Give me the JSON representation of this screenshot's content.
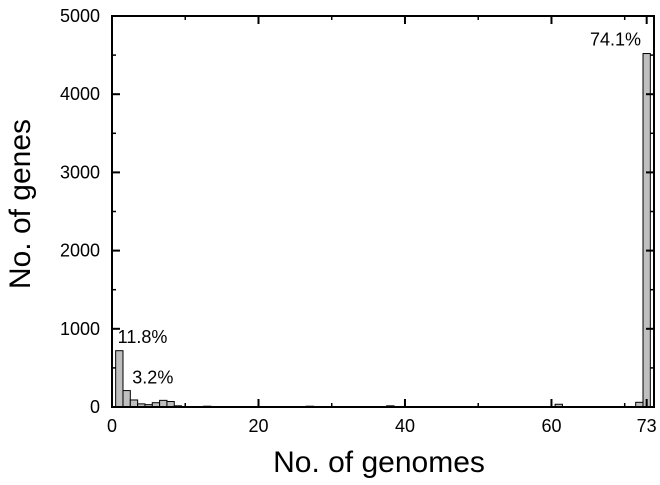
{
  "chart_data": {
    "type": "bar",
    "xlabel": "No. of genomes",
    "ylabel": "No. of genes",
    "xlim": [
      0,
      74
    ],
    "ylim": [
      0,
      5000
    ],
    "x_ticks": [
      0,
      20,
      40,
      60,
      73
    ],
    "y_ticks": [
      0,
      1000,
      2000,
      3000,
      4000,
      5000
    ],
    "bar_color": "#bfbfbf",
    "bars": [
      {
        "x": 1,
        "value": 720
      },
      {
        "x": 2,
        "value": 210
      },
      {
        "x": 3,
        "value": 90
      },
      {
        "x": 4,
        "value": 40
      },
      {
        "x": 5,
        "value": 30
      },
      {
        "x": 6,
        "value": 55
      },
      {
        "x": 7,
        "value": 85
      },
      {
        "x": 8,
        "value": 70
      },
      {
        "x": 9,
        "value": 15
      },
      {
        "x": 13,
        "value": 10
      },
      {
        "x": 27,
        "value": 10
      },
      {
        "x": 38,
        "value": 15
      },
      {
        "x": 54,
        "value": 5
      },
      {
        "x": 61,
        "value": 35
      },
      {
        "x": 72,
        "value": 60
      },
      {
        "x": 73,
        "value": 4520
      }
    ],
    "annotations": [
      {
        "text": "11.8%",
        "x": 1,
        "y": 820
      },
      {
        "text": "3.2%",
        "x": 3,
        "y": 300
      },
      {
        "text": "74.1%",
        "x": 73,
        "y": 4620
      }
    ]
  }
}
